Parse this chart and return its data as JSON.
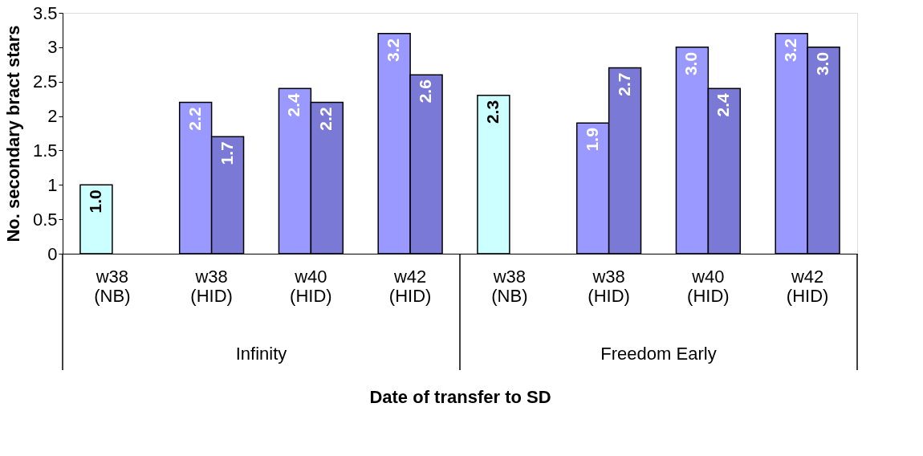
{
  "chart_data": {
    "type": "bar",
    "xlabel": "Date of transfer to SD",
    "ylabel": "No. secondary bract stars",
    "categories": [
      "w38 (NB)",
      "w38 (HID)",
      "w40 (HID)",
      "w42 (HID)",
      "w38 (NB)",
      "w38 (HID)",
      "w40 (HID)",
      "w42 (HID)"
    ],
    "series": [
      {
        "color": "#ccffff",
        "values": [
          1.0,
          null,
          null,
          null,
          2.3,
          null,
          null,
          null
        ],
        "value_labels": [
          "1.0",
          null,
          null,
          null,
          "2.3",
          null,
          null,
          null
        ]
      },
      {
        "color": "#9999ff",
        "values": [
          null,
          2.2,
          2.4,
          3.2,
          null,
          1.9,
          3.0,
          3.2
        ],
        "value_labels": [
          null,
          "2.2",
          "2.4",
          "3.2",
          null,
          "1.9",
          "3.0",
          "3.2"
        ]
      },
      {
        "color": "#7a7ad6",
        "values": [
          null,
          1.7,
          2.2,
          2.6,
          null,
          2.7,
          2.4,
          3.0
        ],
        "value_labels": [
          null,
          "1.7",
          "2.2",
          "2.6",
          null,
          "2.7",
          "2.4",
          "3.0"
        ]
      }
    ],
    "annotations": [
      "Infinity",
      "Freedom Early"
    ],
    "ylim": [
      0,
      3.5
    ],
    "yticks": [
      0,
      0.5,
      1,
      1.5,
      2,
      2.5,
      3,
      3.5
    ],
    "grid": false
  }
}
